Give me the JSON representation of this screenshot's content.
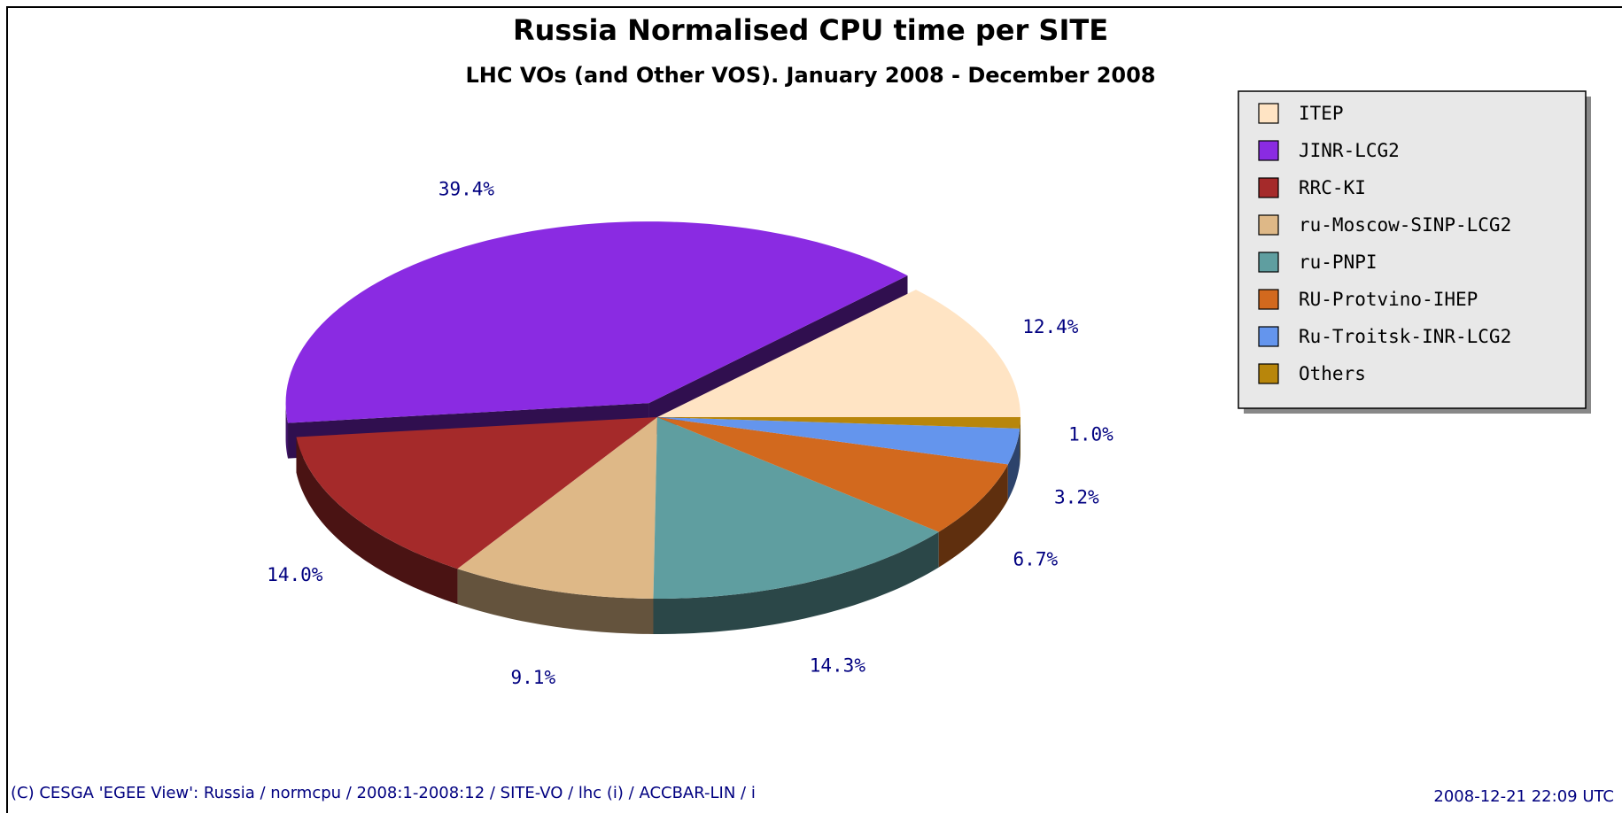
{
  "chart_data": {
    "type": "pie",
    "title": "Russia Normalised CPU time per SITE",
    "subtitle": "LHC VOs (and Other VOS). January 2008 - December 2008",
    "categories": [
      "ITEP",
      "JINR-LCG2",
      "RRC-KI",
      "ru-Moscow-SINP-LCG2",
      "ru-PNPI",
      "RU-Protvino-IHEP",
      "Ru-Troitsk-INR-LCG2",
      "Others"
    ],
    "values": [
      12.4,
      39.4,
      14.0,
      9.1,
      14.3,
      6.7,
      3.2,
      1.0
    ],
    "value_labels": [
      "12.4%",
      "39.4%",
      "14.0%",
      "9.1%",
      "14.3%",
      "6.7%",
      "3.2%",
      "1.0%"
    ],
    "colors": [
      "#ffe4c4",
      "#8a2be2",
      "#a52a2a",
      "#deb887",
      "#5f9ea0",
      "#d2691e",
      "#6495ed",
      "#b8860b"
    ],
    "legend": "right",
    "footer_left": "(C) CESGA 'EGEE View': Russia / normcpu / 2008:1-2008:12 / SITE-VO / lhc (i) / ACCBAR-LIN / i",
    "footer_right": "2008-12-21 22:09 UTC"
  }
}
